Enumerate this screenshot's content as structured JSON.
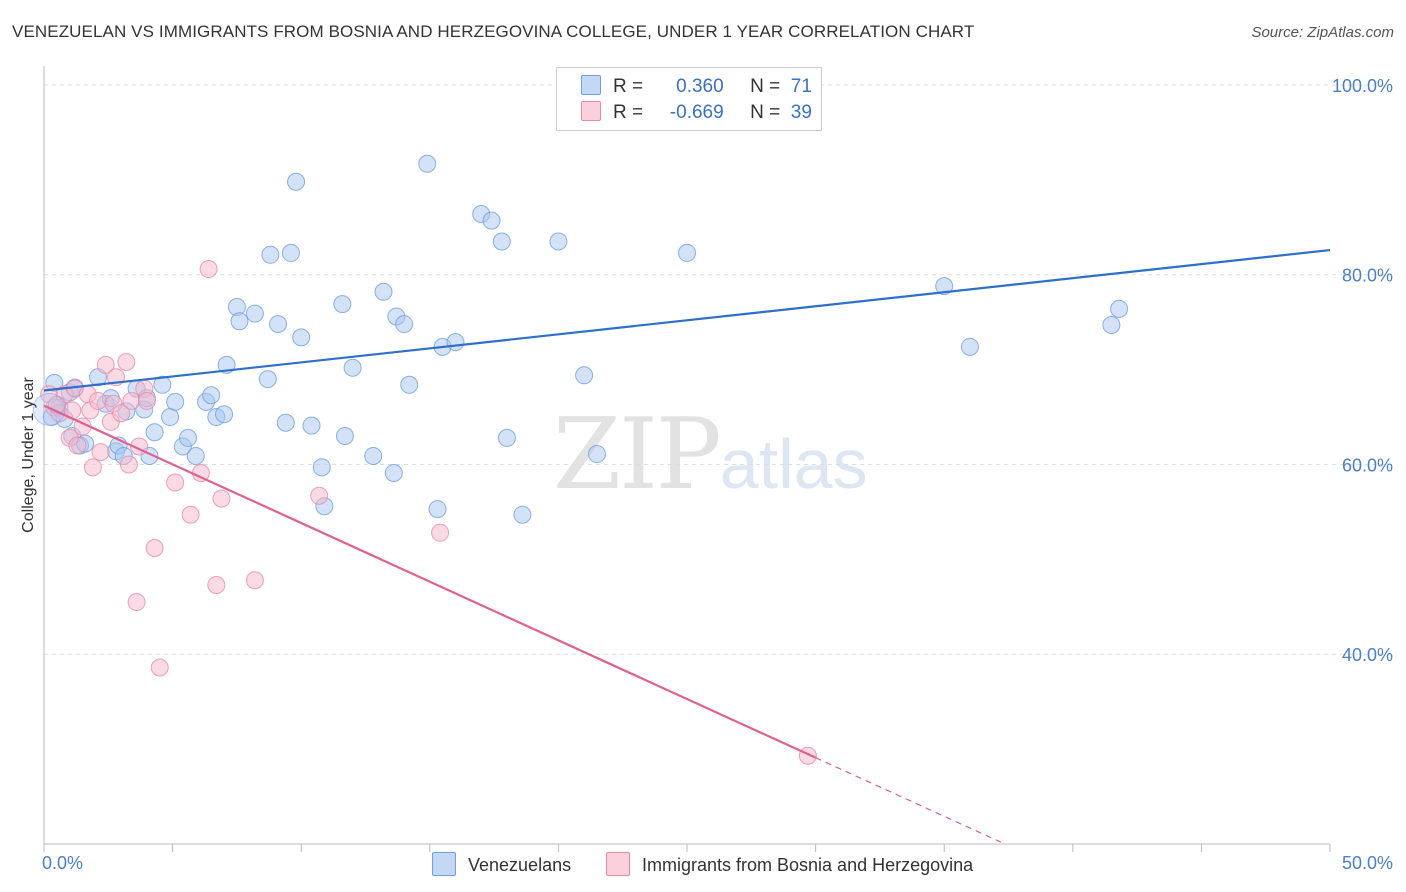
{
  "title": "VENEZUELAN VS IMMIGRANTS FROM BOSNIA AND HERZEGOVINA COLLEGE, UNDER 1 YEAR CORRELATION CHART",
  "source": "Source: ZipAtlas.com",
  "watermark": {
    "zip": "ZIP",
    "atlas": "atlas"
  },
  "legend": {
    "rows": [
      {
        "r_label": "R =",
        "r_value": "0.360",
        "n_label": "N =",
        "n_value": "71",
        "color": "#a8c6f0"
      },
      {
        "r_label": "R =",
        "r_value": "-0.669",
        "n_label": "N =",
        "n_value": "39",
        "color": "#f5b8cb"
      }
    ]
  },
  "bottom_legend": {
    "series1": "Venezuelans",
    "series2": "Immigrants from Bosnia and Herzegovina"
  },
  "colors": {
    "blue_fill": "#a8c6f0",
    "blue_stroke": "#6f9fe0",
    "blue_line": "#2f6fcc",
    "pink_fill": "#f5b8cb",
    "pink_stroke": "#e88aa8",
    "pink_line": "#e0608e",
    "grid": "#dddddd",
    "tick_text": "#4a7fc8"
  },
  "chart_data": {
    "type": "scatter",
    "title": "VENEZUELAN VS IMMIGRANTS FROM BOSNIA AND HERZEGOVINA COLLEGE, UNDER 1 YEAR CORRELATION CHART",
    "xlabel": "",
    "ylabel": "College, Under 1 year",
    "xlim": [
      0,
      50
    ],
    "ylim": [
      20,
      102
    ],
    "x_tick_labels": [
      "0.0%",
      "50.0%"
    ],
    "y_ticks": [
      40,
      60,
      80,
      100
    ],
    "y_tick_labels": [
      "40.0%",
      "60.0%",
      "80.0%",
      "100.0%"
    ],
    "grid": true,
    "series": [
      {
        "name": "Venezuelans",
        "r": 0.36,
        "n": 71,
        "trend": {
          "x0": 0,
          "y0": 67.8,
          "x1": 50,
          "y1": 82.6
        },
        "points": [
          [
            0.3,
            65.0
          ],
          [
            0.4,
            68.6
          ],
          [
            0.6,
            66.0
          ],
          [
            0.8,
            64.8
          ],
          [
            1.0,
            67.6
          ],
          [
            1.1,
            63.0
          ],
          [
            1.2,
            68.1
          ],
          [
            1.4,
            62.0
          ],
          [
            1.6,
            62.2
          ],
          [
            2.1,
            69.2
          ],
          [
            2.4,
            66.4
          ],
          [
            2.6,
            67.0
          ],
          [
            2.8,
            61.4
          ],
          [
            2.9,
            62.0
          ],
          [
            3.1,
            60.9
          ],
          [
            3.2,
            65.6
          ],
          [
            3.6,
            68.0
          ],
          [
            3.9,
            65.8
          ],
          [
            4.0,
            67.0
          ],
          [
            4.1,
            60.9
          ],
          [
            4.3,
            63.4
          ],
          [
            4.6,
            68.4
          ],
          [
            4.9,
            65.0
          ],
          [
            5.1,
            66.6
          ],
          [
            5.4,
            61.9
          ],
          [
            5.6,
            62.8
          ],
          [
            5.9,
            60.9
          ],
          [
            6.3,
            66.6
          ],
          [
            6.5,
            67.3
          ],
          [
            6.7,
            65.0
          ],
          [
            7.0,
            65.3
          ],
          [
            7.1,
            70.5
          ],
          [
            7.5,
            76.6
          ],
          [
            7.6,
            75.1
          ],
          [
            8.2,
            75.9
          ],
          [
            8.7,
            69.0
          ],
          [
            8.8,
            82.1
          ],
          [
            9.1,
            74.8
          ],
          [
            9.4,
            64.4
          ],
          [
            9.6,
            82.3
          ],
          [
            9.8,
            89.8
          ],
          [
            10.0,
            73.4
          ],
          [
            10.4,
            64.1
          ],
          [
            10.8,
            59.7
          ],
          [
            10.9,
            55.6
          ],
          [
            11.6,
            76.9
          ],
          [
            11.7,
            63.0
          ],
          [
            12.0,
            70.2
          ],
          [
            12.8,
            60.9
          ],
          [
            13.2,
            78.2
          ],
          [
            13.6,
            59.1
          ],
          [
            13.7,
            75.6
          ],
          [
            14.0,
            74.8
          ],
          [
            14.2,
            68.4
          ],
          [
            14.9,
            91.7
          ],
          [
            15.3,
            55.3
          ],
          [
            15.5,
            72.4
          ],
          [
            16.0,
            72.9
          ],
          [
            17.0,
            86.4
          ],
          [
            17.4,
            85.7
          ],
          [
            17.8,
            83.5
          ],
          [
            18.0,
            62.8
          ],
          [
            18.6,
            54.7
          ],
          [
            20.0,
            83.5
          ],
          [
            21.0,
            69.4
          ],
          [
            21.5,
            61.1
          ],
          [
            25.0,
            82.3
          ],
          [
            35.0,
            78.8
          ],
          [
            36.0,
            72.4
          ],
          [
            41.5,
            74.7
          ],
          [
            41.8,
            76.4
          ]
        ]
      },
      {
        "name": "Immigrants from Bosnia and Herzegovina",
        "r": -0.669,
        "n": 39,
        "trend": {
          "x0": 0,
          "y0": 66.2,
          "x1": 30,
          "y1": 29.1,
          "dashed_to_x": 37.2,
          "dashed_to_y": 20.2
        },
        "points": [
          [
            0.2,
            67.4
          ],
          [
            0.4,
            66.0
          ],
          [
            0.6,
            65.4
          ],
          [
            0.8,
            67.4
          ],
          [
            1.0,
            62.8
          ],
          [
            1.1,
            65.7
          ],
          [
            1.2,
            68.0
          ],
          [
            1.3,
            62.0
          ],
          [
            1.5,
            64.0
          ],
          [
            1.7,
            67.4
          ],
          [
            1.8,
            65.7
          ],
          [
            1.9,
            59.7
          ],
          [
            2.1,
            66.7
          ],
          [
            2.2,
            61.3
          ],
          [
            2.4,
            70.5
          ],
          [
            2.6,
            64.5
          ],
          [
            2.7,
            66.4
          ],
          [
            2.8,
            69.2
          ],
          [
            3.0,
            65.4
          ],
          [
            3.2,
            70.8
          ],
          [
            3.3,
            60.0
          ],
          [
            3.4,
            66.7
          ],
          [
            3.6,
            45.5
          ],
          [
            3.7,
            61.9
          ],
          [
            3.9,
            68.0
          ],
          [
            4.0,
            66.7
          ],
          [
            4.3,
            51.2
          ],
          [
            4.5,
            38.6
          ],
          [
            5.1,
            58.1
          ],
          [
            5.7,
            54.7
          ],
          [
            6.1,
            59.1
          ],
          [
            6.4,
            80.6
          ],
          [
            6.7,
            47.3
          ],
          [
            6.9,
            56.4
          ],
          [
            8.2,
            47.8
          ],
          [
            10.7,
            56.7
          ],
          [
            15.4,
            52.8
          ],
          [
            29.7,
            29.3
          ],
          [
            0.5,
            66.3
          ]
        ]
      }
    ]
  }
}
